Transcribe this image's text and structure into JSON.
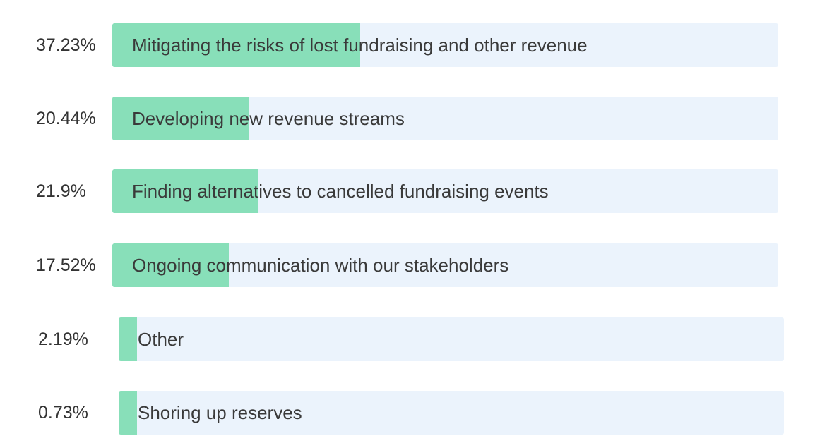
{
  "chart_data": {
    "type": "bar",
    "orientation": "horizontal",
    "value_unit": "%",
    "colors": {
      "fill": "#88dfb9",
      "track": "#ebf3fc",
      "text": "#3a3a3a"
    },
    "categories": [
      "Mitigating the risks of lost fundraising and other revenue",
      "Developing new revenue streams",
      "Finding alternatives to cancelled fundraising events",
      "Ongoing communication with our stakeholders",
      "Other",
      "Shoring up reserves"
    ],
    "values": [
      37.23,
      20.44,
      21.9,
      17.52,
      2.19,
      0.73
    ],
    "value_labels": [
      "37.23%",
      "20.44%",
      "21.9%",
      "17.52%",
      "2.19%",
      "0.73%"
    ]
  }
}
